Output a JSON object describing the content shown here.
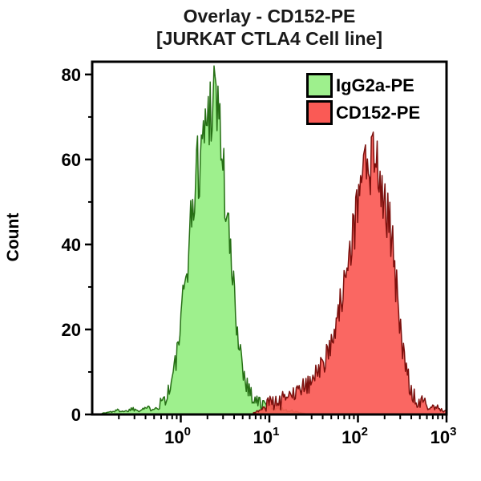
{
  "title": {
    "line1": "Overlay - CD152-PE",
    "line2": "[JURKAT CTLA4 Cell line]"
  },
  "legend": {
    "items": [
      {
        "label": "IgG2a-PE",
        "fill": "#9ef08d",
        "border": "#000000"
      },
      {
        "label": "CD152-PE",
        "fill": "#fa5a55",
        "border": "#000000"
      }
    ]
  },
  "colors": {
    "background": "#ffffff",
    "axis": "#000000",
    "text": "#000000",
    "green_fill": "#9ef08d",
    "green_stroke": "#266f15",
    "red_fill": "#fa5a55",
    "red_stroke": "#7c100d"
  },
  "chart_data": {
    "type": "area",
    "subtype": "flow-cytometry-histogram-overlay",
    "title": "Overlay - CD152-PE [JURKAT CTLA4 Cell line]",
    "xlabel": "",
    "ylabel": "Count",
    "x_scale": "log10",
    "xlim_log10": [
      -1,
      3
    ],
    "ylim": [
      0,
      83
    ],
    "grid": false,
    "legend_position": "top-right-inside",
    "y_axis": {
      "major_ticks": [
        0,
        20,
        40,
        60,
        80
      ],
      "minor_ticks": [
        10,
        30,
        50,
        70
      ]
    },
    "x_axis": {
      "major_ticks": [
        {
          "label": "10⁰",
          "exponent": 0,
          "value": 1
        },
        {
          "label": "10¹",
          "exponent": 1,
          "value": 10
        },
        {
          "label": "10²",
          "exponent": 2,
          "value": 100
        },
        {
          "label": "10³",
          "exponent": 3,
          "value": 1000
        }
      ],
      "minor_ticks": "log-decade-2-to-9"
    },
    "series": [
      {
        "name": "IgG2a-PE",
        "fill": "#9ef08d",
        "stroke": "#266f15",
        "peak": {
          "x_value": 2.4,
          "count": 78
        },
        "points_log10x_count": [
          [
            -0.9,
            0.2
          ],
          [
            -0.8,
            0.6
          ],
          [
            -0.7,
            1.0
          ],
          [
            -0.62,
            0.7
          ],
          [
            -0.55,
            1.4
          ],
          [
            -0.48,
            1.0
          ],
          [
            -0.4,
            1.6
          ],
          [
            -0.33,
            1.3
          ],
          [
            -0.27,
            2.2
          ],
          [
            -0.21,
            3.2
          ],
          [
            -0.15,
            4.8
          ],
          [
            -0.1,
            8.0
          ],
          [
            -0.05,
            13.0
          ],
          [
            0.0,
            21.0
          ],
          [
            0.05,
            31.0
          ],
          [
            0.1,
            42.0
          ],
          [
            0.14,
            50.0
          ],
          [
            0.18,
            57.0
          ],
          [
            0.22,
            61.0
          ],
          [
            0.26,
            66.0
          ],
          [
            0.3,
            70.0
          ],
          [
            0.34,
            74.0
          ],
          [
            0.38,
            78.0
          ],
          [
            0.42,
            73.0
          ],
          [
            0.46,
            63.0
          ],
          [
            0.5,
            52.0
          ],
          [
            0.54,
            42.0
          ],
          [
            0.58,
            33.0
          ],
          [
            0.62,
            24.0
          ],
          [
            0.66,
            17.0
          ],
          [
            0.7,
            11.0
          ],
          [
            0.75,
            7.0
          ],
          [
            0.8,
            4.5
          ],
          [
            0.86,
            3.0
          ],
          [
            0.93,
            2.2
          ],
          [
            1.0,
            1.8
          ],
          [
            1.1,
            1.4
          ],
          [
            1.2,
            1.0
          ],
          [
            1.3,
            0.6
          ],
          [
            1.4,
            0.2
          ]
        ]
      },
      {
        "name": "CD152-PE",
        "fill": "#fa5a55",
        "stroke": "#7c100d",
        "peak": {
          "x_value": 160,
          "count": 62
        },
        "points_log10x_count": [
          [
            0.82,
            0.3
          ],
          [
            0.9,
            1.0
          ],
          [
            0.96,
            2.0
          ],
          [
            1.02,
            2.6
          ],
          [
            1.08,
            3.4
          ],
          [
            1.13,
            3.0
          ],
          [
            1.18,
            4.4
          ],
          [
            1.23,
            5.0
          ],
          [
            1.28,
            4.2
          ],
          [
            1.33,
            6.0
          ],
          [
            1.38,
            7.0
          ],
          [
            1.43,
            6.4
          ],
          [
            1.48,
            8.0
          ],
          [
            1.53,
            9.5
          ],
          [
            1.58,
            11.0
          ],
          [
            1.63,
            12.5
          ],
          [
            1.68,
            15.0
          ],
          [
            1.73,
            19.0
          ],
          [
            1.78,
            24.0
          ],
          [
            1.83,
            30.0
          ],
          [
            1.88,
            36.0
          ],
          [
            1.93,
            42.0
          ],
          [
            1.98,
            47.0
          ],
          [
            2.03,
            52.0
          ],
          [
            2.08,
            55.0
          ],
          [
            2.13,
            57.0
          ],
          [
            2.17,
            59.0
          ],
          [
            2.21,
            62.0
          ],
          [
            2.25,
            58.0
          ],
          [
            2.29,
            54.0
          ],
          [
            2.33,
            49.0
          ],
          [
            2.37,
            43.0
          ],
          [
            2.41,
            35.0
          ],
          [
            2.45,
            27.0
          ],
          [
            2.49,
            18.0
          ],
          [
            2.53,
            12.0
          ],
          [
            2.57,
            8.0
          ],
          [
            2.62,
            5.0
          ],
          [
            2.68,
            3.4
          ],
          [
            2.74,
            2.2
          ],
          [
            2.82,
            1.6
          ],
          [
            2.9,
            1.8
          ],
          [
            2.95,
            1.0
          ],
          [
            3.0,
            0.8
          ]
        ]
      }
    ]
  }
}
